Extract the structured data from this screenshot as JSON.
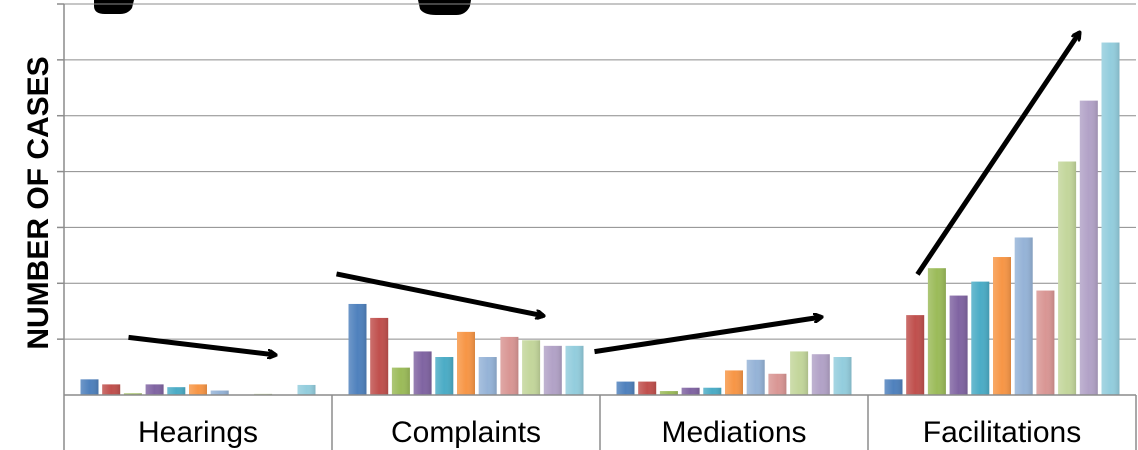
{
  "chart_data": {
    "type": "bar",
    "title": "",
    "xlabel": "",
    "ylabel": "NUMBER OF CASES",
    "categories": [
      "Hearings",
      "Complaints",
      "Mediations",
      "Facilitations"
    ],
    "ylim": [
      0,
      7
    ],
    "grid": true,
    "legend": "none",
    "series_colors": [
      "#4F81BD",
      "#C0504D",
      "#9BBB59",
      "#8064A2",
      "#4BACC6",
      "#F79646",
      "#95B3D7",
      "#D99694",
      "#C3D69B",
      "#B2A2C7",
      "#93CDDD"
    ],
    "series": [
      {
        "values": [
          0.28,
          1.63,
          0.24,
          0.28
        ]
      },
      {
        "values": [
          0.19,
          1.38,
          0.24,
          1.43
        ]
      },
      {
        "values": [
          0.03,
          0.49,
          0.07,
          2.27
        ]
      },
      {
        "values": [
          0.19,
          0.78,
          0.13,
          1.78
        ]
      },
      {
        "values": [
          0.14,
          0.68,
          0.13,
          2.03
        ]
      },
      {
        "values": [
          0.19,
          1.13,
          0.44,
          2.47
        ]
      },
      {
        "values": [
          0.08,
          0.68,
          0.63,
          2.82
        ]
      },
      {
        "values": [
          0.0,
          1.04,
          0.38,
          1.87
        ]
      },
      {
        "values": [
          0.02,
          0.98,
          0.78,
          4.18
        ]
      },
      {
        "values": [
          0.0,
          0.88,
          0.73,
          5.27
        ]
      },
      {
        "values": [
          0.18,
          0.88,
          0.68,
          6.31
        ]
      }
    ],
    "annotations": [
      "trend-arrow",
      "trend-arrow",
      "trend-arrow",
      "trend-arrow"
    ]
  }
}
